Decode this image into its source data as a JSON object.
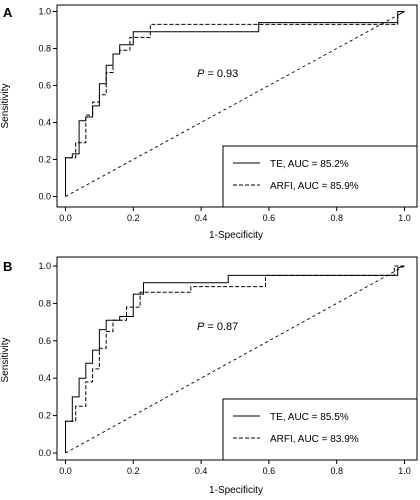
{
  "chart_data": [
    {
      "type": "line",
      "panel_label": "A",
      "xlabel": "1-Specificity",
      "ylabel": "Sensitivity",
      "xlim": [
        0,
        1
      ],
      "ylim": [
        0,
        1
      ],
      "xticks": [
        "0.0",
        "0.2",
        "0.4",
        "0.6",
        "0.8",
        "1.0"
      ],
      "yticks": [
        "0.0",
        "0.2",
        "0.4",
        "0.6",
        "0.8",
        "1.0"
      ],
      "annotation": {
        "italic": "P",
        "text": " = 0.93"
      },
      "legend_position": "bottom-right",
      "series": [
        {
          "name": "TE, AUC = 85.2%",
          "style": "solid",
          "x": [
            0,
            0,
            0.02,
            0.02,
            0.04,
            0.04,
            0.06,
            0.06,
            0.08,
            0.08,
            0.1,
            0.1,
            0.12,
            0.12,
            0.14,
            0.14,
            0.16,
            0.16,
            0.18,
            0.18,
            0.2,
            0.2,
            0.57,
            0.57,
            0.98,
            0.98,
            1
          ],
          "y": [
            0,
            0.21,
            0.21,
            0.23,
            0.23,
            0.41,
            0.41,
            0.43,
            0.43,
            0.49,
            0.49,
            0.61,
            0.61,
            0.71,
            0.71,
            0.77,
            0.77,
            0.82,
            0.82,
            0.82,
            0.82,
            0.89,
            0.89,
            0.94,
            0.94,
            1.0,
            1.0
          ]
        },
        {
          "name": "ARFI, AUC = 85.9%",
          "style": "dashed",
          "x": [
            0,
            0,
            0.03,
            0.03,
            0.06,
            0.06,
            0.08,
            0.08,
            0.1,
            0.1,
            0.12,
            0.12,
            0.14,
            0.14,
            0.16,
            0.16,
            0.19,
            0.19,
            0.25,
            0.25,
            0.57,
            0.57,
            0.98,
            0.98,
            1
          ],
          "y": [
            0,
            0.21,
            0.21,
            0.29,
            0.29,
            0.44,
            0.44,
            0.51,
            0.51,
            0.55,
            0.55,
            0.67,
            0.67,
            0.77,
            0.77,
            0.79,
            0.79,
            0.86,
            0.86,
            0.93,
            0.93,
            0.93,
            0.93,
            0.98,
            1.0
          ]
        }
      ]
    },
    {
      "type": "line",
      "panel_label": "B",
      "xlabel": "1-Specificity",
      "ylabel": "Sensitivity",
      "xlim": [
        0,
        1
      ],
      "ylim": [
        0,
        1
      ],
      "xticks": [
        "0.0",
        "0.2",
        "0.4",
        "0.6",
        "0.8",
        "1.0"
      ],
      "yticks": [
        "0.0",
        "0.2",
        "0.4",
        "0.6",
        "0.8",
        "1.0"
      ],
      "annotation": {
        "italic": "P",
        "text": " = 0.87"
      },
      "legend_position": "bottom-right",
      "series": [
        {
          "name": "TE, AUC = 85.5%",
          "style": "solid",
          "x": [
            0,
            0,
            0.02,
            0.02,
            0.04,
            0.04,
            0.06,
            0.06,
            0.08,
            0.08,
            0.1,
            0.1,
            0.12,
            0.12,
            0.16,
            0.16,
            0.2,
            0.2,
            0.23,
            0.23,
            0.48,
            0.48,
            0.98,
            0.98,
            1
          ],
          "y": [
            0,
            0.17,
            0.17,
            0.3,
            0.3,
            0.4,
            0.4,
            0.48,
            0.48,
            0.55,
            0.55,
            0.66,
            0.66,
            0.71,
            0.71,
            0.73,
            0.73,
            0.85,
            0.85,
            0.91,
            0.91,
            0.95,
            0.95,
            0.99,
            1.0
          ]
        },
        {
          "name": "ARFI, AUC = 83.9%",
          "style": "dashed",
          "x": [
            0,
            0,
            0.03,
            0.03,
            0.06,
            0.06,
            0.08,
            0.08,
            0.1,
            0.1,
            0.12,
            0.12,
            0.14,
            0.14,
            0.18,
            0.18,
            0.22,
            0.22,
            0.37,
            0.37,
            0.59,
            0.59,
            0.97,
            0.97,
            1
          ],
          "y": [
            0,
            0.17,
            0.17,
            0.25,
            0.25,
            0.38,
            0.38,
            0.45,
            0.45,
            0.56,
            0.56,
            0.65,
            0.65,
            0.71,
            0.71,
            0.78,
            0.78,
            0.86,
            0.86,
            0.89,
            0.89,
            0.95,
            0.95,
            1.0,
            1.0
          ]
        }
      ]
    }
  ]
}
